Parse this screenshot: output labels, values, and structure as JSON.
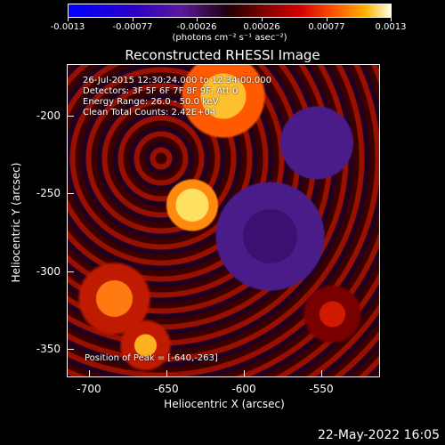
{
  "colorbar": {
    "tick_labels": [
      "-0.0013",
      "-0.00077",
      "-0.00026",
      "0.00026",
      "0.00077",
      "0.0013"
    ],
    "unit_label": "(photons cm⁻² s⁻¹ asec⁻²)"
  },
  "image": {
    "title": "Reconstructed RHESSI Image",
    "annotation_lines": [
      "26-Jul-2015 12:30:24.000 to 12:34:00.000",
      "Detectors: 3F 5F 6F 7F 8F 9F, Att 0",
      "Energy Range: 26.0 - 50.0 keV",
      "Clean    Total Counts: 2.42E+04"
    ],
    "peak_label": "Position of Peak = [-640,-263]",
    "xlabel": "Heliocentric X (arcsec)",
    "ylabel": "Heliocentric Y (arcsec)",
    "x_ticks": [
      "-700",
      "-650",
      "-600",
      "-550"
    ],
    "y_ticks": [
      "-200",
      "-250",
      "-300",
      "-350"
    ]
  },
  "footer": {
    "timestamp": "22-May-2022 16:05"
  }
}
